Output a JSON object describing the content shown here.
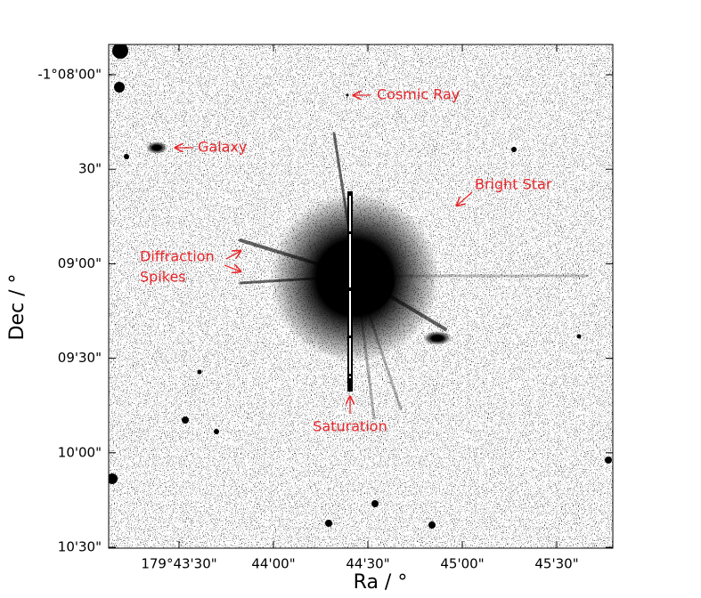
{
  "axes": {
    "xlabel": "Ra / °",
    "ylabel": "Dec / °",
    "xticks": [
      "179°43'30\"",
      "44'00\"",
      "44'30\"",
      "45'00\"",
      "45'30\""
    ],
    "yticks": [
      "-1°08'00\"",
      "30\"",
      "09'00\"",
      "09'30\"",
      "10'00\"",
      "10'30\""
    ]
  },
  "annotations": {
    "cosmic_ray": "Cosmic Ray",
    "galaxy": "Galaxy",
    "bright_star": "Bright Star",
    "diffraction": [
      "Diffraction",
      "Spikes"
    ],
    "saturation": "Saturation"
  }
}
